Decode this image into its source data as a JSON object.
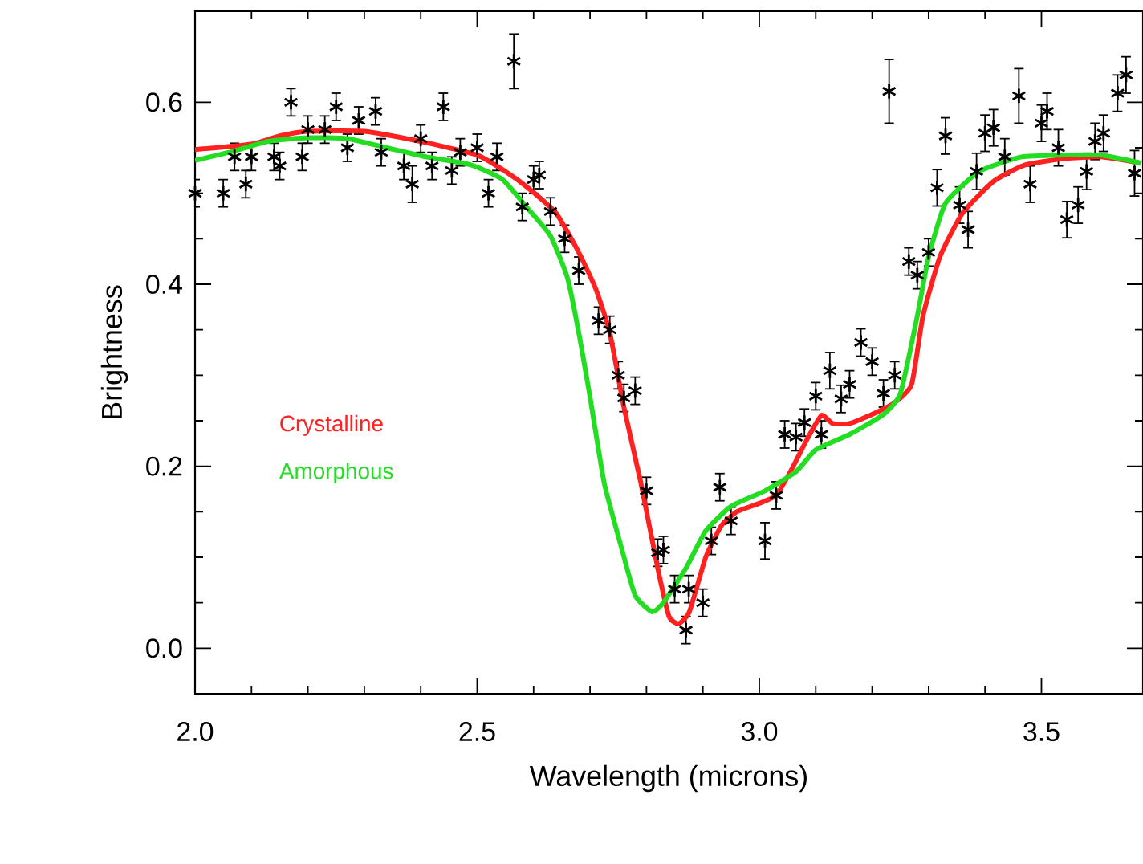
{
  "chart_data": {
    "type": "scatter",
    "xlabel": "Wavelength (microns)",
    "ylabel": "Brightness",
    "xlim": [
      2.0,
      3.68
    ],
    "ylim": [
      -0.05,
      0.7
    ],
    "xticks": [
      {
        "value": 2.0,
        "label": "2.0"
      },
      {
        "value": 2.5,
        "label": "2.5"
      },
      {
        "value": 3.0,
        "label": "3.0"
      },
      {
        "value": 3.5,
        "label": "3.5"
      }
    ],
    "yticks": [
      {
        "value": 0.0,
        "label": "0.0"
      },
      {
        "value": 0.2,
        "label": "0.2"
      },
      {
        "value": 0.4,
        "label": "0.4"
      },
      {
        "value": 0.6,
        "label": "0.6"
      }
    ],
    "legend": "left",
    "grid": false,
    "series": [
      {
        "color": "#000000",
        "marker": "cross",
        "x": [
          2.0,
          2.05,
          2.09,
          2.07,
          2.1,
          2.14,
          2.17,
          2.15,
          2.19,
          2.2,
          2.23,
          2.25,
          2.27,
          2.29,
          2.32,
          2.33,
          2.37,
          2.385,
          2.4,
          2.42,
          2.44,
          2.455,
          2.47,
          2.5,
          2.52,
          2.535,
          2.565,
          2.58,
          2.6,
          2.61,
          2.63,
          2.655,
          2.68,
          2.715,
          2.735,
          2.75,
          2.76,
          2.78,
          2.8,
          2.82,
          2.83,
          2.85,
          2.87,
          2.875,
          2.9,
          2.915,
          2.93,
          2.95,
          3.01,
          3.03,
          3.045,
          3.065,
          3.08,
          3.1,
          3.11,
          3.125,
          3.145,
          3.16,
          3.18,
          3.2,
          3.22,
          3.23,
          3.24,
          3.265,
          3.28,
          3.3,
          3.315,
          3.33,
          3.355,
          3.37,
          3.385,
          3.4,
          3.415,
          3.435,
          3.46,
          3.48,
          3.5,
          3.51,
          3.53,
          3.545,
          3.565,
          3.58,
          3.595,
          3.61,
          3.635,
          3.65,
          3.665
        ],
        "values": [
          0.5,
          0.5,
          0.51,
          0.54,
          0.54,
          0.54,
          0.6,
          0.53,
          0.54,
          0.57,
          0.57,
          0.595,
          0.55,
          0.58,
          0.59,
          0.545,
          0.53,
          0.51,
          0.56,
          0.53,
          0.595,
          0.525,
          0.545,
          0.55,
          0.5,
          0.54,
          0.645,
          0.485,
          0.515,
          0.52,
          0.48,
          0.45,
          0.415,
          0.36,
          0.35,
          0.3,
          0.275,
          0.283,
          0.173,
          0.105,
          0.108,
          0.065,
          0.02,
          0.065,
          0.05,
          0.118,
          0.177,
          0.14,
          0.118,
          0.168,
          0.235,
          0.232,
          0.248,
          0.277,
          0.235,
          0.305,
          0.274,
          0.29,
          0.336,
          0.315,
          0.28,
          0.612,
          0.3,
          0.425,
          0.41,
          0.435,
          0.506,
          0.563,
          0.487,
          0.46,
          0.524,
          0.566,
          0.572,
          0.54,
          0.607,
          0.51,
          0.577,
          0.59,
          0.55,
          0.471,
          0.487,
          0.524,
          0.557,
          0.566,
          0.61,
          0.63,
          0.522
        ],
        "errors": [
          0.015,
          0.015,
          0.015,
          0.015,
          0.015,
          0.015,
          0.015,
          0.015,
          0.015,
          0.015,
          0.015,
          0.015,
          0.015,
          0.015,
          0.015,
          0.015,
          0.015,
          0.02,
          0.015,
          0.015,
          0.015,
          0.015,
          0.015,
          0.015,
          0.015,
          0.015,
          0.03,
          0.015,
          0.015,
          0.015,
          0.015,
          0.015,
          0.015,
          0.015,
          0.015,
          0.015,
          0.015,
          0.015,
          0.015,
          0.015,
          0.015,
          0.015,
          0.015,
          0.015,
          0.015,
          0.015,
          0.015,
          0.015,
          0.02,
          0.015,
          0.015,
          0.015,
          0.015,
          0.015,
          0.015,
          0.02,
          0.015,
          0.015,
          0.015,
          0.015,
          0.015,
          0.035,
          0.015,
          0.015,
          0.015,
          0.015,
          0.02,
          0.02,
          0.02,
          0.02,
          0.02,
          0.02,
          0.02,
          0.02,
          0.03,
          0.02,
          0.02,
          0.02,
          0.02,
          0.02,
          0.02,
          0.02,
          0.02,
          0.02,
          0.02,
          0.02,
          0.025
        ]
      },
      {
        "type": "line",
        "name": "Crystalline",
        "color": "#ff2020",
        "x": [
          2.0,
          2.1,
          2.15,
          2.2,
          2.3,
          2.4,
          2.5,
          2.55,
          2.59,
          2.64,
          2.68,
          2.71,
          2.735,
          2.76,
          2.79,
          2.82,
          2.84,
          2.857,
          2.876,
          2.905,
          2.933,
          2.96,
          2.999,
          3.03,
          3.055,
          3.085,
          3.11,
          3.13,
          3.16,
          3.2,
          3.24,
          3.27,
          3.29,
          3.32,
          3.36,
          3.415,
          3.47,
          3.54,
          3.605,
          3.677
        ],
        "values": [
          0.548,
          0.554,
          0.563,
          0.568,
          0.568,
          0.557,
          0.542,
          0.524,
          0.506,
          0.478,
          0.435,
          0.395,
          0.347,
          0.265,
          0.182,
          0.088,
          0.035,
          0.027,
          0.04,
          0.1,
          0.135,
          0.15,
          0.159,
          0.168,
          0.194,
          0.23,
          0.256,
          0.247,
          0.247,
          0.257,
          0.27,
          0.29,
          0.365,
          0.43,
          0.478,
          0.513,
          0.531,
          0.538,
          0.54,
          0.533
        ]
      },
      {
        "type": "line",
        "name": "Amorphous",
        "color": "#22dd22",
        "x": [
          2.0,
          2.06,
          2.13,
          2.2,
          2.27,
          2.34,
          2.41,
          2.49,
          2.545,
          2.59,
          2.63,
          2.66,
          2.68,
          2.7,
          2.725,
          2.755,
          2.78,
          2.81,
          2.83,
          2.87,
          2.905,
          2.95,
          3.01,
          3.065,
          3.1,
          3.16,
          3.22,
          3.25,
          3.28,
          3.3,
          3.33,
          3.39,
          3.465,
          3.54,
          3.605,
          3.677
        ],
        "values": [
          0.536,
          0.545,
          0.557,
          0.561,
          0.56,
          0.55,
          0.54,
          0.531,
          0.515,
          0.483,
          0.453,
          0.407,
          0.347,
          0.276,
          0.182,
          0.112,
          0.058,
          0.04,
          0.05,
          0.088,
          0.129,
          0.156,
          0.173,
          0.194,
          0.218,
          0.235,
          0.257,
          0.28,
          0.365,
          0.43,
          0.489,
          0.524,
          0.54,
          0.542,
          0.542,
          0.533
        ]
      }
    ]
  }
}
